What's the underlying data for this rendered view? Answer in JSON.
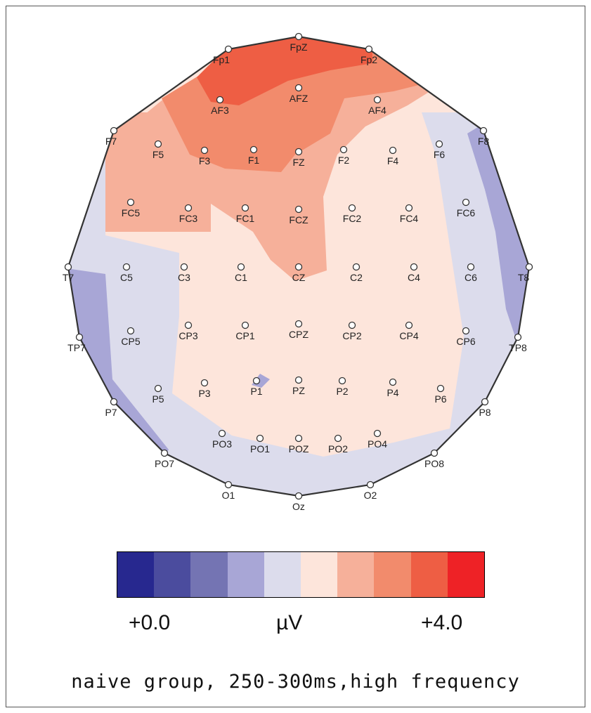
{
  "electrodes": [
    "Fp1",
    "FpZ",
    "Fp2",
    "AF3",
    "AFZ",
    "AF4",
    "F7",
    "F5",
    "F3",
    "F1",
    "FZ",
    "F2",
    "F4",
    "F6",
    "F8",
    "FC5",
    "FC3",
    "FC1",
    "FCZ",
    "FC2",
    "FC4",
    "FC6",
    "T7",
    "C5",
    "C3",
    "C1",
    "CZ",
    "C2",
    "C4",
    "C6",
    "T8",
    "TP7",
    "CP5",
    "CP3",
    "CP1",
    "CPZ",
    "CP2",
    "CP4",
    "CP6",
    "TP8",
    "P7",
    "P5",
    "P3",
    "P1",
    "PZ",
    "P2",
    "P4",
    "P6",
    "P8",
    "PO7",
    "PO3",
    "PO1",
    "POZ",
    "PO2",
    "PO4",
    "PO8",
    "O1",
    "Oz",
    "O2"
  ],
  "colorbar": {
    "colors": [
      "#27288f",
      "#4b4c9e",
      "#7474b3",
      "#a8a6d6",
      "#dcdcec",
      "#fde5db",
      "#f6b09a",
      "#f28b6c",
      "#ee5e44",
      "#ee2226"
    ]
  },
  "scale": {
    "min_label": "+0.0",
    "unit_label": "µV",
    "max_label": "+4.0"
  },
  "caption": "naive group, 250-300ms,high frequency"
}
